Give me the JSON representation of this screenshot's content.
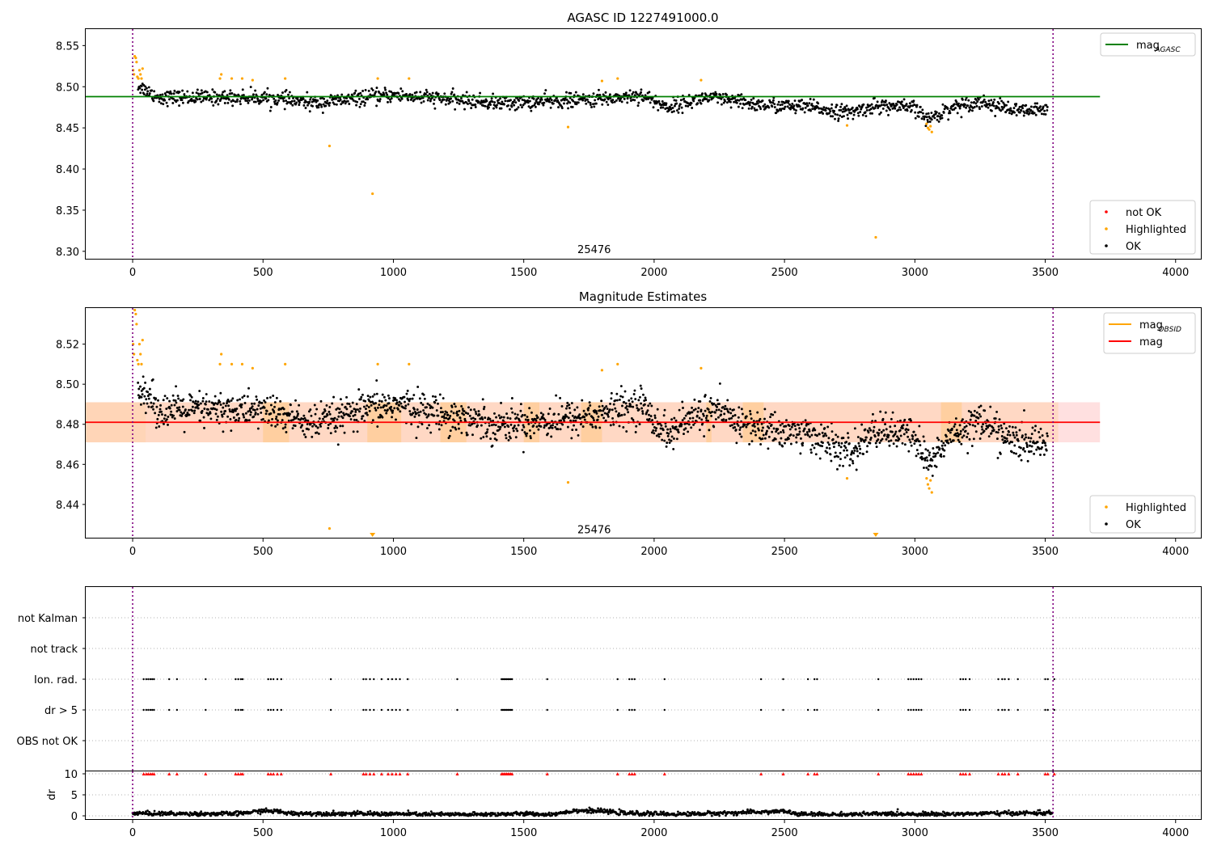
{
  "chart_data": [
    {
      "type": "scatter",
      "title": "AGASC ID 1227491000.0",
      "xlim": [
        -180,
        4100
      ],
      "ylim": [
        8.29,
        8.57
      ],
      "xticks": [
        0,
        500,
        1000,
        1500,
        2000,
        2500,
        3000,
        3500,
        4000
      ],
      "yticks": [
        8.3,
        8.35,
        8.4,
        8.45,
        8.5,
        8.55
      ],
      "grid": false,
      "legend_upper": {
        "position": "upper right",
        "entries": [
          {
            "label": "mag",
            "subscript": "AGASC",
            "color": "#008000",
            "kind": "line"
          }
        ]
      },
      "legend_lower": {
        "position": "lower right",
        "entries": [
          {
            "label": "not OK",
            "color": "#ff0000",
            "kind": "point"
          },
          {
            "label": "Highlighted",
            "color": "#ffa500",
            "kind": "point"
          },
          {
            "label": "OK",
            "color": "#000000",
            "kind": "point"
          }
        ]
      },
      "annotation": {
        "text": "25476",
        "x": 1770,
        "y": 8.3
      },
      "vlines": [
        0,
        3530
      ],
      "hline": {
        "y": 8.488,
        "x_range": [
          -180,
          3710
        ],
        "color": "#008000"
      },
      "ok_trend": [
        [
          0,
          8.505
        ],
        [
          100,
          8.487
        ],
        [
          300,
          8.487
        ],
        [
          500,
          8.487
        ],
        [
          700,
          8.48
        ],
        [
          900,
          8.487
        ],
        [
          1000,
          8.49
        ],
        [
          1200,
          8.485
        ],
        [
          1400,
          8.48
        ],
        [
          1600,
          8.482
        ],
        [
          1800,
          8.485
        ],
        [
          1950,
          8.49
        ],
        [
          2050,
          8.475
        ],
        [
          2200,
          8.487
        ],
        [
          2400,
          8.478
        ],
        [
          2600,
          8.475
        ],
        [
          2750,
          8.468
        ],
        [
          2850,
          8.477
        ],
        [
          3000,
          8.474
        ],
        [
          3050,
          8.46
        ],
        [
          3150,
          8.476
        ],
        [
          3250,
          8.482
        ],
        [
          3400,
          8.47
        ],
        [
          3530,
          8.472
        ]
      ],
      "ok_scatter": 0.008,
      "highlighted": [
        [
          2,
          8.52
        ],
        [
          5,
          8.515
        ],
        [
          8,
          8.537
        ],
        [
          12,
          8.535
        ],
        [
          15,
          8.53
        ],
        [
          18,
          8.512
        ],
        [
          22,
          8.51
        ],
        [
          26,
          8.52
        ],
        [
          30,
          8.515
        ],
        [
          34,
          8.51
        ],
        [
          38,
          8.522
        ],
        [
          335,
          8.51
        ],
        [
          340,
          8.515
        ],
        [
          380,
          8.51
        ],
        [
          420,
          8.51
        ],
        [
          460,
          8.508
        ],
        [
          585,
          8.51
        ],
        [
          755,
          8.428
        ],
        [
          920,
          8.37
        ],
        [
          940,
          8.51
        ],
        [
          1060,
          8.51
        ],
        [
          1670,
          8.451
        ],
        [
          1800,
          8.507
        ],
        [
          1860,
          8.51
        ],
        [
          2180,
          8.508
        ],
        [
          2740,
          8.453
        ],
        [
          2850,
          8.317
        ],
        [
          3045,
          8.455
        ],
        [
          3050,
          8.45
        ],
        [
          3055,
          8.448
        ],
        [
          3060,
          8.452
        ],
        [
          3065,
          8.445
        ]
      ]
    },
    {
      "type": "scatter",
      "title": "Magnitude Estimates",
      "xlim": [
        -180,
        4100
      ],
      "ylim": [
        8.423,
        8.538
      ],
      "xticks": [
        0,
        500,
        1000,
        1500,
        2000,
        2500,
        3000,
        3500,
        4000
      ],
      "yticks": [
        8.44,
        8.46,
        8.48,
        8.5,
        8.52
      ],
      "grid": false,
      "legend_upper": {
        "position": "upper right",
        "entries": [
          {
            "label": "mag",
            "subscript": "OBSID",
            "color": "#ffa500",
            "kind": "line"
          },
          {
            "label": "mag",
            "subscript": "",
            "color": "#ff0000",
            "kind": "line"
          }
        ]
      },
      "legend_lower": {
        "position": "lower right",
        "entries": [
          {
            "label": "Highlighted",
            "color": "#ffa500",
            "kind": "point"
          },
          {
            "label": "OK",
            "color": "#000000",
            "kind": "point"
          }
        ]
      },
      "annotation": {
        "text": "25476",
        "x": 1770,
        "y": 8.426
      },
      "vlines": [
        0,
        3530
      ],
      "mag_line": {
        "y": 8.481,
        "x_range": [
          -180,
          3710
        ],
        "color": "#ff0000"
      },
      "mag_band": [
        8.471,
        8.491
      ],
      "obsid_band": {
        "range": [
          8.471,
          8.491
        ],
        "segments": [
          [
            -180,
            50
          ],
          [
            500,
            600
          ],
          [
            900,
            1030
          ],
          [
            1180,
            1280
          ],
          [
            1500,
            1560
          ],
          [
            1720,
            1800
          ],
          [
            2200,
            2220
          ],
          [
            2340,
            2420
          ],
          [
            3100,
            3180
          ]
        ]
      },
      "ok_trend": [
        [
          0,
          8.505
        ],
        [
          100,
          8.487
        ],
        [
          300,
          8.487
        ],
        [
          500,
          8.487
        ],
        [
          700,
          8.48
        ],
        [
          900,
          8.487
        ],
        [
          1000,
          8.49
        ],
        [
          1200,
          8.485
        ],
        [
          1400,
          8.48
        ],
        [
          1600,
          8.482
        ],
        [
          1800,
          8.485
        ],
        [
          1950,
          8.49
        ],
        [
          2050,
          8.475
        ],
        [
          2200,
          8.487
        ],
        [
          2400,
          8.478
        ],
        [
          2600,
          8.475
        ],
        [
          2750,
          8.465
        ],
        [
          2850,
          8.477
        ],
        [
          3000,
          8.474
        ],
        [
          3050,
          8.46
        ],
        [
          3150,
          8.476
        ],
        [
          3250,
          8.482
        ],
        [
          3400,
          8.47
        ],
        [
          3530,
          8.472
        ]
      ],
      "ok_scatter": 0.008,
      "highlighted": [
        [
          2,
          8.52
        ],
        [
          5,
          8.515
        ],
        [
          8,
          8.537
        ],
        [
          12,
          8.535
        ],
        [
          15,
          8.53
        ],
        [
          18,
          8.512
        ],
        [
          22,
          8.51
        ],
        [
          26,
          8.52
        ],
        [
          30,
          8.515
        ],
        [
          34,
          8.51
        ],
        [
          38,
          8.522
        ],
        [
          335,
          8.51
        ],
        [
          340,
          8.515
        ],
        [
          380,
          8.51
        ],
        [
          420,
          8.51
        ],
        [
          460,
          8.508
        ],
        [
          585,
          8.51
        ],
        [
          755,
          8.428
        ],
        [
          940,
          8.51
        ],
        [
          1060,
          8.51
        ],
        [
          1670,
          8.451
        ],
        [
          1800,
          8.507
        ],
        [
          1860,
          8.51
        ],
        [
          2180,
          8.508
        ],
        [
          2740,
          8.453
        ],
        [
          3045,
          8.453
        ],
        [
          3050,
          8.45
        ],
        [
          3055,
          8.448
        ],
        [
          3060,
          8.452
        ],
        [
          3065,
          8.446
        ]
      ],
      "offscale_triangles": [
        920,
        2850
      ]
    },
    {
      "type": "scatter",
      "title": "",
      "xlim": [
        -180,
        4100
      ],
      "categories": [
        "not Kalman",
        "not track",
        "Ion. rad.",
        "dr > 5",
        "OBS not OK"
      ],
      "grid": "horizontal dotted",
      "vlines": [
        0,
        3530
      ],
      "flag_x": [
        42,
        52,
        60,
        68,
        75,
        82,
        140,
        170,
        280,
        395,
        405,
        415,
        422,
        520,
        530,
        540,
        555,
        570,
        760,
        885,
        895,
        910,
        925,
        955,
        980,
        995,
        1010,
        1025,
        1055,
        1245,
        1415,
        1420,
        1425,
        1430,
        1435,
        1440,
        1445,
        1450,
        1455,
        1590,
        1860,
        1905,
        1915,
        1925,
        2040,
        2410,
        2495,
        2590,
        2615,
        2625,
        2860,
        2975,
        2985,
        2995,
        3005,
        3015,
        3025,
        3175,
        3185,
        3195,
        3210,
        3320,
        3335,
        3345,
        3360,
        3395,
        3500,
        3510,
        3535
      ],
      "flag_rows": [
        "Ion. rad.",
        "dr > 5"
      ]
    },
    {
      "type": "scatter",
      "title": "",
      "ylabel": "dr",
      "xlim": [
        -180,
        4100
      ],
      "ylim": [
        -1,
        11
      ],
      "yticks": [
        0,
        5,
        10
      ],
      "xticks": [
        0,
        500,
        1000,
        1500,
        2000,
        2500,
        3000,
        3500,
        4000
      ],
      "grid": "horizontal dotted",
      "vlines": [
        0,
        3530
      ],
      "dr_trend": [
        [
          0,
          0.6
        ],
        [
          200,
          0.5
        ],
        [
          400,
          0.5
        ],
        [
          500,
          1.2
        ],
        [
          550,
          1.1
        ],
        [
          600,
          0.6
        ],
        [
          900,
          0.5
        ],
        [
          1100,
          0.4
        ],
        [
          1300,
          0.3
        ],
        [
          1500,
          0.5
        ],
        [
          1600,
          0.3
        ],
        [
          1700,
          1.3
        ],
        [
          1800,
          1.1
        ],
        [
          1900,
          0.6
        ],
        [
          2100,
          0.4
        ],
        [
          2300,
          0.7
        ],
        [
          2500,
          1.1
        ],
        [
          2550,
          0.4
        ],
        [
          2700,
          0.3
        ],
        [
          2900,
          0.5
        ],
        [
          3100,
          0.4
        ],
        [
          3300,
          0.6
        ],
        [
          3530,
          0.7
        ]
      ],
      "red_marker_y": 10
    }
  ]
}
